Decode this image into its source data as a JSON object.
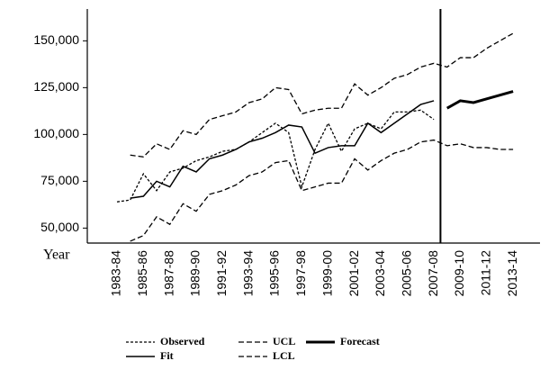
{
  "chart_data": {
    "type": "line",
    "x_label": "Year",
    "categories": [
      "1983-84",
      null,
      "1985-86",
      null,
      "1987-88",
      null,
      "1989-90",
      null,
      "1991-92",
      null,
      "1993-94",
      null,
      "1995-96",
      null,
      "1997-98",
      null,
      "1999-00",
      null,
      "2001-02",
      null,
      "2003-04",
      null,
      "2005-06",
      null,
      "2007-08",
      null,
      "2009-10",
      null,
      "2011-12",
      null,
      "2013-14"
    ],
    "ylim": [
      42000,
      167000
    ],
    "yticks": [
      {
        "value": 50000,
        "label": "50,000"
      },
      {
        "value": 75000,
        "label": "75,000"
      },
      {
        "value": 100000,
        "label": "100,000"
      },
      {
        "value": 125000,
        "label": "125,000"
      },
      {
        "value": 150000,
        "label": "150,000"
      }
    ],
    "series": [
      {
        "name": "Observed",
        "color": "#000000",
        "style": "dotted",
        "values": [
          64000,
          65000,
          79000,
          70000,
          80000,
          82000,
          86000,
          88000,
          91000,
          92000,
          96000,
          101000,
          106000,
          101000,
          72000,
          92000,
          106000,
          91000,
          103000,
          106000,
          103000,
          112000,
          112000,
          113000,
          108000,
          null,
          null,
          null,
          null,
          null,
          null
        ]
      },
      {
        "name": "Fit",
        "color": "#000000",
        "style": "solid",
        "values": [
          null,
          66000,
          67000,
          75000,
          72000,
          83000,
          80000,
          87000,
          89000,
          92000,
          96000,
          98000,
          101000,
          105000,
          104000,
          90000,
          93000,
          94000,
          94000,
          106000,
          101000,
          106000,
          111000,
          116000,
          118000,
          null,
          null,
          null,
          null,
          null,
          null
        ]
      },
      {
        "name": "UCL",
        "color": "#000000",
        "style": "dashed",
        "values": [
          null,
          89000,
          88000,
          95000,
          92000,
          102000,
          100000,
          108000,
          110000,
          112000,
          117000,
          119000,
          125000,
          124000,
          111000,
          113000,
          114000,
          114000,
          127000,
          121000,
          125000,
          130000,
          132000,
          136000,
          138000,
          136000,
          141000,
          141000,
          146000,
          150000,
          154000
        ]
      },
      {
        "name": "LCL",
        "color": "#000000",
        "style": "dashed",
        "values": [
          null,
          43000,
          46000,
          56000,
          52000,
          63000,
          59000,
          68000,
          70000,
          73000,
          78000,
          80000,
          85000,
          86000,
          70000,
          72000,
          74000,
          74000,
          87000,
          81000,
          86000,
          90000,
          92000,
          96000,
          97000,
          94000,
          95000,
          93000,
          93000,
          92000,
          92000
        ]
      },
      {
        "name": "Forecast",
        "color": "#000000",
        "style": "bold",
        "values": [
          null,
          null,
          null,
          null,
          null,
          null,
          null,
          null,
          null,
          null,
          null,
          null,
          null,
          null,
          null,
          null,
          null,
          null,
          null,
          null,
          null,
          null,
          null,
          null,
          null,
          114000,
          118000,
          117000,
          119000,
          121000,
          123000
        ]
      }
    ]
  }
}
